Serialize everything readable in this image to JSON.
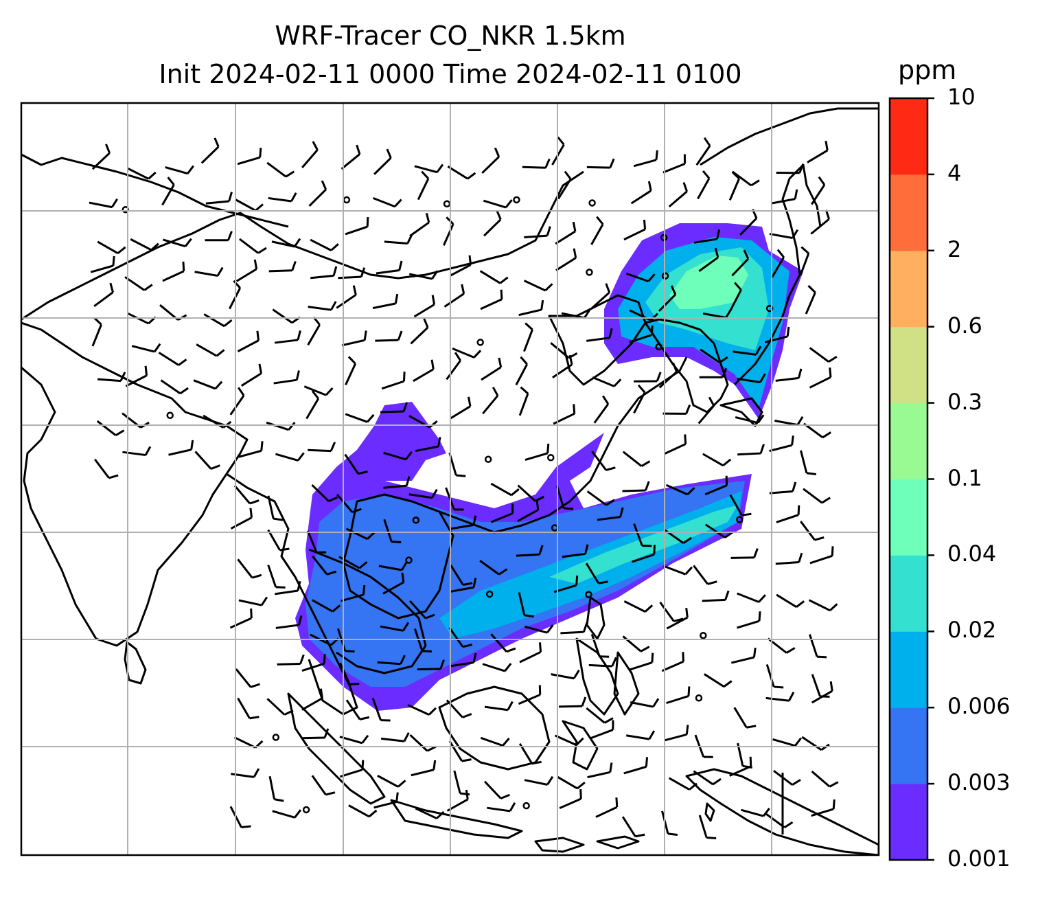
{
  "title": {
    "line1": "WRF-Tracer CO_NKR 1.5km",
    "line2": "Init 2024-02-11 0000 Time 2024-02-11 0100"
  },
  "colorbar": {
    "unit": "ppm",
    "levels": [
      "0.001",
      "0.003",
      "0.006",
      "0.02",
      "0.04",
      "0.1",
      "0.3",
      "0.6",
      "2",
      "4",
      "10"
    ],
    "colors": [
      "#6a2cff",
      "#3574f2",
      "#00b0ec",
      "#34e0d0",
      "#6effbb",
      "#99f992",
      "#d0e084",
      "#ffaf5e",
      "#ff6d3a",
      "#ff2a14"
    ]
  },
  "map": {
    "plume_colors": {
      "faint": "#6a2cff",
      "low": "#3574f2",
      "mid": "#00b0ec",
      "high": "#34e0d0",
      "peak": "#6effbb"
    },
    "coastline_color": "#000000",
    "grid_color": "#b0b0b0"
  }
}
